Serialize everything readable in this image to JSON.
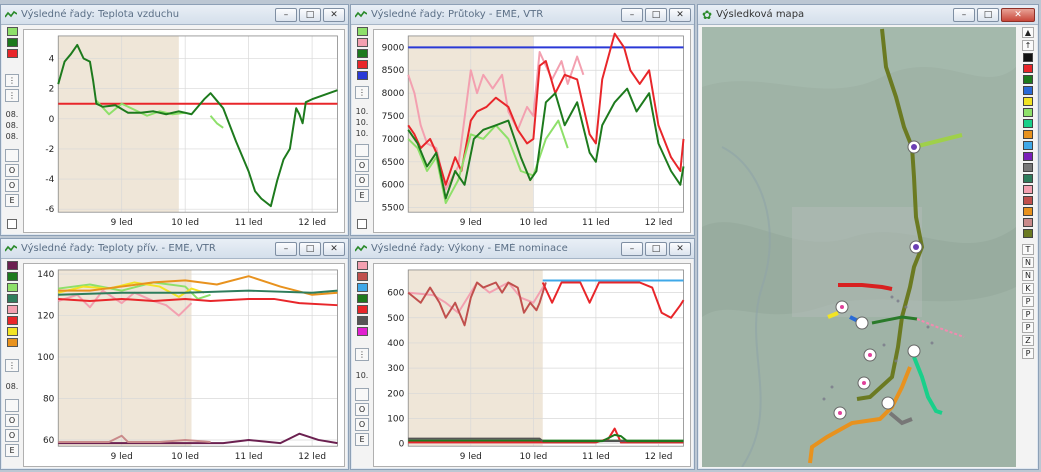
{
  "windows": {
    "air_temp": {
      "title": "Výsledné řady: Teplota vzduchu"
    },
    "flows": {
      "title": "Výsledné řady: Průtoky - EMĚ, VTŘ"
    },
    "supply_temp": {
      "title": "Výsledné řady: Teploty přív. - EMĚ, VTŘ"
    },
    "power": {
      "title": "Výsledné řady: Výkony - EMĚ nominace"
    },
    "map": {
      "title": "Výsledková mapa"
    }
  },
  "buttons": {
    "minimize": "–",
    "maximize": "□",
    "close": "✕",
    "e_button": "E",
    "o_button": "O"
  },
  "strip_labels": {
    "date_08": "08.",
    "date_10": "10."
  },
  "map_legend_letters": [
    "T",
    "N",
    "N",
    "K",
    "P",
    "P",
    "P",
    "Z",
    "P"
  ],
  "colors": {
    "title_text": "#5b6f86",
    "grid": "#d8d8d8",
    "history_band": "#efe6d8",
    "dark_green": "#1d7a1d",
    "light_green": "#8ee06a",
    "red": "#e8262a",
    "pink": "#f3a0b0",
    "blue": "#2a39d6",
    "orange": "#e8921e",
    "yellow": "#f2e424"
  },
  "chart_data": [
    {
      "type": "line",
      "title": "Výsledné řady: Teplota vzduchu",
      "x_ticks": [
        "9 led",
        "10 led",
        "11 led",
        "12 led"
      ],
      "y_ticks": [
        "4",
        "2",
        "0",
        "-2",
        "-4",
        "-6"
      ],
      "ylim": [
        -6.2,
        5.5
      ],
      "xlim": [
        0,
        4.4
      ],
      "history_until": 1.9,
      "series": [
        {
          "color": "#e8262a",
          "x": [
            0,
            4.4
          ],
          "values": [
            1,
            1
          ]
        },
        {
          "color": "#8ee06a",
          "x": [
            0.6,
            0.8,
            1.0,
            1.2,
            1.4,
            1.6,
            1.8,
            2.0
          ],
          "values": [
            1.2,
            0.3,
            1.0,
            0.6,
            0.2,
            0.5,
            0.3,
            0.4
          ]
        },
        {
          "color": "#8ee06a",
          "x": [
            2.4,
            2.5,
            2.6
          ],
          "values": [
            0.2,
            -0.3,
            -0.6
          ]
        },
        {
          "color": "#1d7a1d",
          "x": [
            0,
            0.1,
            0.2,
            0.3,
            0.4,
            0.5,
            0.55,
            0.6,
            0.7,
            0.9,
            1.1,
            1.3,
            1.5,
            1.7,
            1.9,
            2.1,
            2.3,
            2.4,
            2.5,
            2.6,
            2.8,
            3.0,
            3.1,
            3.2,
            3.35,
            3.45,
            3.55,
            3.65,
            3.75,
            3.8,
            3.85,
            3.9,
            4.0,
            4.2,
            4.4
          ],
          "values": [
            2.3,
            3.8,
            4.3,
            4.9,
            4.0,
            3.8,
            2.5,
            1.0,
            0.8,
            0.9,
            0.4,
            0.4,
            0.5,
            0.3,
            0.5,
            0.3,
            1.3,
            1.7,
            1.2,
            0.7,
            -1.5,
            -3.5,
            -4.8,
            -5.3,
            -5.8,
            -4.1,
            -2.7,
            -2.0,
            0.7,
            0.3,
            -0.3,
            1.1,
            1.3,
            1.6,
            1.9
          ]
        }
      ]
    },
    {
      "type": "line",
      "title": "Výsledné řady: Průtoky - EMĚ, VTŘ",
      "x_ticks": [
        "9 led",
        "10 led",
        "11 led",
        "12 led"
      ],
      "y_ticks": [
        "9000",
        "8500",
        "8000",
        "7500",
        "7000",
        "6500",
        "6000",
        "5500"
      ],
      "ylim": [
        5400,
        9250
      ],
      "xlim": [
        0,
        4.4
      ],
      "history_until": 2.0,
      "series": [
        {
          "color": "#2a39d6",
          "x": [
            0,
            4.4
          ],
          "values": [
            9000,
            9000
          ]
        },
        {
          "color": "#f3a0b0",
          "x": [
            0,
            0.1,
            0.2,
            0.3,
            0.45,
            0.6,
            0.8,
            1.0,
            1.1,
            1.2,
            1.35,
            1.5,
            1.6,
            1.75,
            1.9,
            2.0,
            2.1,
            2.2,
            2.3,
            2.45,
            2.55,
            2.7,
            2.8
          ],
          "values": [
            8400,
            8000,
            7300,
            6900,
            6800,
            5900,
            6400,
            8500,
            8000,
            8400,
            8100,
            8400,
            7600,
            7200,
            7700,
            7500,
            8900,
            8600,
            8300,
            8700,
            8200,
            8800,
            8400
          ]
        },
        {
          "color": "#e8262a",
          "x": [
            0,
            0.1,
            0.2,
            0.35,
            0.45,
            0.6,
            0.75,
            0.85,
            1.0,
            1.1,
            1.25,
            1.4,
            1.6,
            1.75,
            1.9,
            2.0,
            2.1,
            2.2,
            2.35,
            2.5,
            2.7,
            2.9,
            3.0,
            3.1,
            3.3,
            3.45,
            3.55,
            3.7,
            3.85,
            4.0,
            4.2,
            4.35,
            4.4
          ],
          "values": [
            7300,
            7100,
            6800,
            7000,
            6700,
            6000,
            6600,
            6300,
            7400,
            7600,
            7700,
            7900,
            7700,
            7200,
            6900,
            7000,
            8600,
            8700,
            8000,
            8400,
            8300,
            7100,
            6900,
            8300,
            9300,
            9000,
            8500,
            8200,
            8500,
            7300,
            6600,
            6300,
            7000
          ]
        },
        {
          "color": "#8ee06a",
          "x": [
            0,
            0.15,
            0.3,
            0.45,
            0.6,
            0.8,
            1.0,
            1.2,
            1.4,
            1.6,
            1.8,
            2.0,
            2.2,
            2.4,
            2.55
          ],
          "values": [
            7000,
            6800,
            6300,
            6600,
            5600,
            6100,
            7100,
            7000,
            7300,
            7000,
            6300,
            6200,
            7000,
            7400,
            6800
          ]
        },
        {
          "color": "#1d7a1d",
          "x": [
            0,
            0.15,
            0.3,
            0.45,
            0.6,
            0.75,
            0.9,
            1.05,
            1.2,
            1.4,
            1.6,
            1.8,
            1.95,
            2.05,
            2.2,
            2.35,
            2.5,
            2.7,
            2.9,
            3.0,
            3.1,
            3.3,
            3.5,
            3.65,
            3.85,
            4.0,
            4.2,
            4.35,
            4.4
          ],
          "values": [
            7200,
            6900,
            6400,
            6700,
            5700,
            6300,
            6000,
            7000,
            7200,
            7300,
            7400,
            6600,
            6100,
            6300,
            7800,
            8000,
            7300,
            7800,
            6700,
            6500,
            7300,
            7800,
            8100,
            7600,
            8000,
            6900,
            6300,
            6000,
            6400
          ]
        }
      ]
    },
    {
      "type": "line",
      "title": "Výsledné řady: Teploty přív. - EMĚ, VTŘ",
      "x_ticks": [
        "9 led",
        "10 led",
        "11 led",
        "12 led"
      ],
      "y_ticks": [
        "140",
        "120",
        "100",
        "80",
        "60"
      ],
      "ylim": [
        57,
        142
      ],
      "xlim": [
        0,
        4.4
      ],
      "history_until": 2.1,
      "series": [
        {
          "color": "#8ee06a",
          "x": [
            0,
            0.5,
            1.0,
            1.5,
            2.0,
            2.2,
            2.4
          ],
          "values": [
            133,
            135,
            132,
            136,
            134,
            128,
            130
          ]
        },
        {
          "color": "#f2e424",
          "x": [
            0,
            0.4,
            0.8,
            1.2,
            1.6,
            1.9,
            2.1,
            2.3
          ],
          "values": [
            131,
            134,
            133,
            136,
            134,
            129,
            133,
            131
          ]
        },
        {
          "color": "#e8921e",
          "x": [
            0,
            0.5,
            1.0,
            1.5,
            2.0,
            2.5,
            3.0,
            3.5,
            4.0,
            4.4
          ],
          "values": [
            132,
            132,
            134,
            136,
            137,
            135,
            139,
            134,
            130,
            131
          ]
        },
        {
          "color": "#f3a0b0",
          "x": [
            0,
            0.3,
            0.5,
            0.7,
            1.0,
            1.2,
            1.5,
            1.7,
            1.9,
            2.1
          ],
          "values": [
            127,
            130,
            124,
            132,
            126,
            131,
            127,
            125,
            120,
            126
          ]
        },
        {
          "color": "#2e7d5c",
          "x": [
            0,
            1.0,
            2.0,
            3.0,
            4.0,
            4.4
          ],
          "values": [
            130,
            131,
            131,
            132,
            131,
            132
          ]
        },
        {
          "color": "#e8262a",
          "x": [
            0,
            0.5,
            1.0,
            1.5,
            2.0,
            2.4,
            3.0,
            3.4,
            3.8,
            4.4
          ],
          "values": [
            128,
            127,
            128,
            127,
            128,
            127,
            128,
            128,
            126,
            125
          ]
        },
        {
          "color": "#6b2050",
          "x": [
            0,
            1.0,
            2.0,
            2.6,
            3.0,
            3.5,
            3.8,
            4.1,
            4.4
          ],
          "values": [
            58.5,
            58.5,
            58.5,
            58.5,
            60,
            58.5,
            63,
            60,
            58.5
          ]
        },
        {
          "color": "#c98a8a",
          "x": [
            0,
            0.8,
            1.0,
            1.1,
            1.6,
            2.0,
            2.4
          ],
          "values": [
            59,
            59,
            62,
            59,
            59,
            60,
            59
          ]
        }
      ]
    },
    {
      "type": "line",
      "title": "Výsledné řady: Výkony - EMĚ nominace",
      "x_ticks": [
        "9 led",
        "10 led",
        "11 led",
        "12 led"
      ],
      "y_ticks": [
        "600",
        "500",
        "400",
        "300",
        "200",
        "100",
        "0"
      ],
      "ylim": [
        -10,
        690
      ],
      "xlim": [
        0,
        4.4
      ],
      "history_until": 2.15,
      "series": [
        {
          "color": "#3fa8e8",
          "x": [
            2.15,
            4.4
          ],
          "values": [
            648,
            648
          ]
        },
        {
          "color": "#f3a0b0",
          "x": [
            0,
            0.4,
            0.6,
            0.8,
            1.1,
            1.3,
            1.6,
            1.8,
            2.0,
            2.2
          ],
          "values": [
            600,
            590,
            560,
            520,
            640,
            600,
            640,
            580,
            560,
            640
          ]
        },
        {
          "color": "#c0504d",
          "x": [
            0,
            0.2,
            0.35,
            0.5,
            0.6,
            0.75,
            0.9,
            1.0,
            1.1,
            1.2,
            1.4,
            1.5,
            1.6,
            1.75,
            1.85,
            1.95,
            2.05,
            2.1,
            2.2
          ],
          "values": [
            600,
            560,
            620,
            560,
            500,
            560,
            470,
            580,
            640,
            620,
            640,
            600,
            640,
            620,
            520,
            560,
            530,
            560,
            640
          ]
        },
        {
          "color": "#e8262a",
          "x": [
            2.15,
            2.3,
            2.45,
            2.6,
            2.75,
            2.9,
            3.05,
            3.15,
            3.3,
            3.5,
            3.7,
            3.9,
            4.05,
            4.2,
            4.35,
            4.4
          ],
          "values": [
            640,
            560,
            640,
            640,
            640,
            560,
            640,
            640,
            640,
            640,
            640,
            620,
            520,
            500,
            550,
            570
          ]
        },
        {
          "color": "#1d7a1d",
          "x": [
            0,
            4.4
          ],
          "values": [
            12,
            12
          ]
        },
        {
          "color": "#e8262a",
          "x": [
            0,
            3.0,
            3.2,
            3.3,
            3.4,
            4.4
          ],
          "values": [
            5,
            5,
            20,
            60,
            5,
            5
          ]
        },
        {
          "color": "#555555",
          "x": [
            0,
            2.1,
            2.15,
            4.4
          ],
          "values": [
            20,
            20,
            10,
            10
          ]
        },
        {
          "color": "#1d7a1d",
          "x": [
            2.15,
            3.1,
            3.3,
            3.4,
            3.5,
            4.4
          ],
          "values": [
            10,
            10,
            35,
            30,
            10,
            10
          ]
        }
      ]
    }
  ]
}
